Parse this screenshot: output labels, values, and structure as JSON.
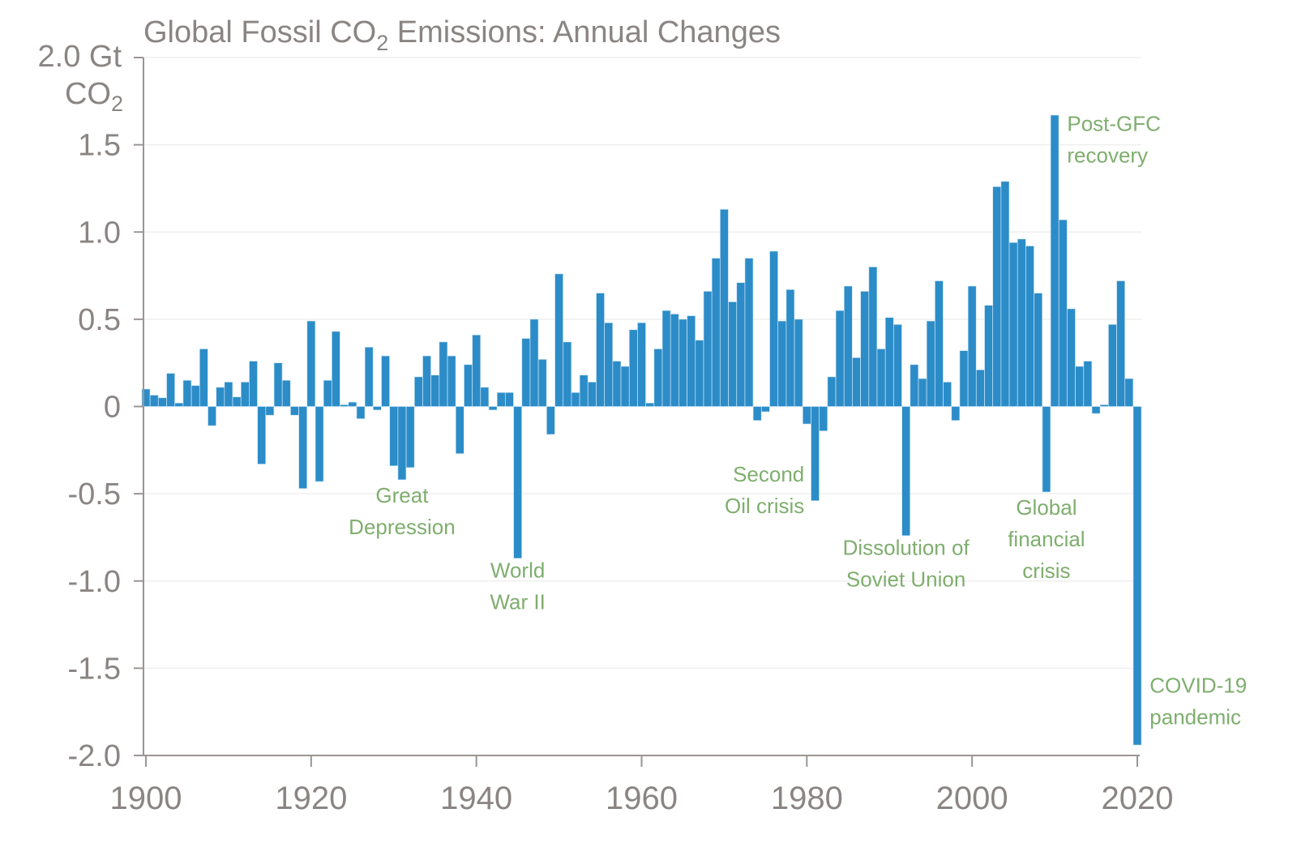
{
  "chart_data": {
    "type": "bar",
    "title": "Global Fossil CO₂ Emissions: Annual Changes",
    "title_parts": {
      "pre": "Global Fossil CO",
      "sub": "2",
      "post": " Emissions: Annual Changes"
    },
    "ylabel": "Gt CO₂",
    "ylabel_top_line": "2.0 Gt",
    "ylabel_second_line": {
      "pre": "CO",
      "sub": "2"
    },
    "xlabel": "",
    "ylim": [
      -2.0,
      2.0
    ],
    "xlim": [
      1900,
      2020
    ],
    "yticks": [
      {
        "value": 1.5,
        "label": "1.5"
      },
      {
        "value": 1.0,
        "label": "1.0"
      },
      {
        "value": 0.5,
        "label": "0.5"
      },
      {
        "value": 0,
        "label": "0"
      },
      {
        "value": -0.5,
        "label": "-0.5"
      },
      {
        "value": -1.0,
        "label": "-1.0"
      },
      {
        "value": -1.5,
        "label": "-1.5"
      },
      {
        "value": -2.0,
        "label": "-2.0"
      }
    ],
    "xticks": [
      {
        "value": 1900,
        "label": "1900"
      },
      {
        "value": 1920,
        "label": "1920"
      },
      {
        "value": 1940,
        "label": "1940"
      },
      {
        "value": 1960,
        "label": "1960"
      },
      {
        "value": 1980,
        "label": "1980"
      },
      {
        "value": 2000,
        "label": "2000"
      },
      {
        "value": 2020,
        "label": "2020"
      }
    ],
    "grid": true,
    "series": [
      {
        "name": "Annual change in fossil CO2 emissions (Gt CO2)",
        "color": "#2b8cc8",
        "x_start": 1900,
        "values": [
          0.1,
          0.065,
          0.05,
          0.19,
          0.02,
          0.15,
          0.12,
          0.33,
          -0.11,
          0.11,
          0.14,
          0.055,
          0.14,
          0.26,
          -0.33,
          -0.05,
          0.25,
          0.15,
          -0.05,
          -0.47,
          0.49,
          -0.43,
          0.15,
          0.43,
          0.01,
          0.025,
          -0.07,
          0.34,
          -0.02,
          0.29,
          -0.34,
          -0.42,
          -0.35,
          0.17,
          0.29,
          0.18,
          0.37,
          0.29,
          -0.27,
          0.24,
          0.41,
          0.11,
          -0.02,
          0.08,
          0.08,
          -0.87,
          0.39,
          0.5,
          0.27,
          -0.16,
          0.76,
          0.37,
          0.08,
          0.18,
          0.14,
          0.65,
          0.48,
          0.26,
          0.23,
          0.44,
          0.48,
          0.02,
          0.33,
          0.55,
          0.53,
          0.5,
          0.52,
          0.38,
          0.66,
          0.85,
          1.13,
          0.6,
          0.71,
          0.85,
          -0.08,
          -0.03,
          0.89,
          0.49,
          0.67,
          0.5,
          -0.1,
          -0.54,
          -0.14,
          0.17,
          0.55,
          0.69,
          0.28,
          0.66,
          0.8,
          0.33,
          0.51,
          0.47,
          -0.74,
          0.24,
          0.16,
          0.49,
          0.72,
          0.14,
          -0.08,
          0.32,
          0.69,
          0.21,
          0.58,
          1.26,
          1.29,
          0.94,
          0.96,
          0.92,
          0.65,
          -0.49,
          1.67,
          1.07,
          0.56,
          0.23,
          0.26,
          -0.04,
          0.01,
          0.47,
          0.72,
          0.16,
          -1.94
        ]
      }
    ],
    "annotations": [
      {
        "lines": [
          "Great",
          "Depression"
        ],
        "year": 1931,
        "value": -0.55,
        "align": "middle"
      },
      {
        "lines": [
          "World",
          "War II"
        ],
        "year": 1945,
        "value": -0.98,
        "align": "middle"
      },
      {
        "lines": [
          "Second",
          "Oil crisis"
        ],
        "year": 1979.7,
        "value": -0.43,
        "align": "end"
      },
      {
        "lines": [
          "Dissolution of",
          "Soviet Union"
        ],
        "year": 1992,
        "value": -0.85,
        "align": "middle"
      },
      {
        "lines": [
          "Global",
          "financial",
          "crisis"
        ],
        "year": 2009,
        "value": -0.62,
        "align": "middle"
      },
      {
        "lines": [
          "Post-GFC",
          "recovery"
        ],
        "year": 2011.5,
        "value": 1.58,
        "align": "start"
      },
      {
        "lines": [
          "COVID-19",
          "pandemic"
        ],
        "year": 2021.5,
        "value": -1.64,
        "align": "start"
      }
    ],
    "annotation_color": "#7fae6e",
    "legend": "none"
  }
}
